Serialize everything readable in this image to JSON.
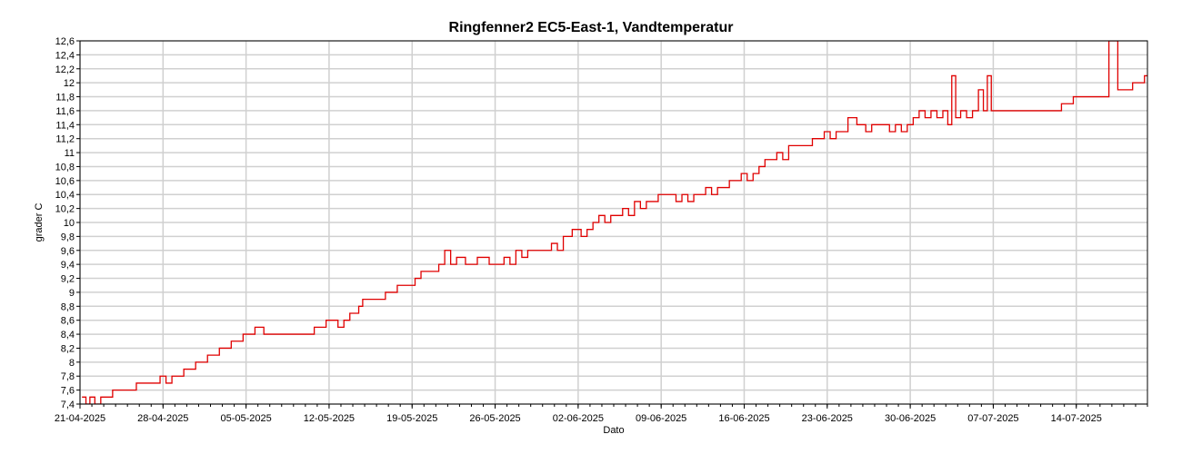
{
  "chart_data": {
    "type": "line",
    "title": "Ringfenner2 EC5-East-1, Vandtemperatur",
    "xlabel": "Dato",
    "ylabel": "grader C",
    "ylim": [
      7.4,
      12.6
    ],
    "y_ticks": [
      {
        "value": 7.4,
        "label": "7,4"
      },
      {
        "value": 7.6,
        "label": "7,6"
      },
      {
        "value": 7.8,
        "label": "7,8"
      },
      {
        "value": 8.0,
        "label": "8"
      },
      {
        "value": 8.2,
        "label": "8,2"
      },
      {
        "value": 8.4,
        "label": "8,4"
      },
      {
        "value": 8.6,
        "label": "8,6"
      },
      {
        "value": 8.8,
        "label": "8,8"
      },
      {
        "value": 9.0,
        "label": "9"
      },
      {
        "value": 9.2,
        "label": "9,2"
      },
      {
        "value": 9.4,
        "label": "9,4"
      },
      {
        "value": 9.6,
        "label": "9,6"
      },
      {
        "value": 9.8,
        "label": "9,8"
      },
      {
        "value": 10.0,
        "label": "10"
      },
      {
        "value": 10.2,
        "label": "10,2"
      },
      {
        "value": 10.4,
        "label": "10,4"
      },
      {
        "value": 10.6,
        "label": "10,6"
      },
      {
        "value": 10.8,
        "label": "10,8"
      },
      {
        "value": 11.0,
        "label": "11"
      },
      {
        "value": 11.2,
        "label": "11,2"
      },
      {
        "value": 11.4,
        "label": "11,4"
      },
      {
        "value": 11.6,
        "label": "11,6"
      },
      {
        "value": 11.8,
        "label": "11,8"
      },
      {
        "value": 12.0,
        "label": "12"
      },
      {
        "value": 12.2,
        "label": "12,2"
      },
      {
        "value": 12.4,
        "label": "12,4"
      },
      {
        "value": 12.6,
        "label": "12,6"
      }
    ],
    "x_range": [
      "2025-04-21",
      "2025-07-20"
    ],
    "x_ticks": [
      {
        "date": "2025-04-21",
        "label": "21-04-2025"
      },
      {
        "date": "2025-04-28",
        "label": "28-04-2025"
      },
      {
        "date": "2025-05-05",
        "label": "05-05-2025"
      },
      {
        "date": "2025-05-12",
        "label": "12-05-2025"
      },
      {
        "date": "2025-05-19",
        "label": "19-05-2025"
      },
      {
        "date": "2025-05-26",
        "label": "26-05-2025"
      },
      {
        "date": "2025-06-02",
        "label": "02-06-2025"
      },
      {
        "date": "2025-06-09",
        "label": "09-06-2025"
      },
      {
        "date": "2025-06-16",
        "label": "16-06-2025"
      },
      {
        "date": "2025-06-23",
        "label": "23-06-2025"
      },
      {
        "date": "2025-06-30",
        "label": "30-06-2025"
      },
      {
        "date": "2025-07-07",
        "label": "07-07-2025"
      },
      {
        "date": "2025-07-14",
        "label": "14-07-2025"
      }
    ],
    "grid": true,
    "series": [
      {
        "color": "#e00000",
        "points": [
          [
            "2025-04-21",
            7.5
          ],
          [
            "2025-04-21",
            7.4
          ],
          [
            "2025-04-21",
            7.5
          ],
          [
            "2025-04-22",
            7.4
          ],
          [
            "2025-04-22",
            7.5
          ],
          [
            "2025-04-23",
            7.5
          ],
          [
            "2025-04-23",
            7.6
          ],
          [
            "2025-04-24",
            7.6
          ],
          [
            "2025-04-25",
            7.6
          ],
          [
            "2025-04-25",
            7.7
          ],
          [
            "2025-04-27",
            7.7
          ],
          [
            "2025-04-27",
            7.8
          ],
          [
            "2025-04-28",
            7.7
          ],
          [
            "2025-04-28",
            7.8
          ],
          [
            "2025-04-29",
            7.8
          ],
          [
            "2025-04-29",
            7.9
          ],
          [
            "2025-04-30",
            7.9
          ],
          [
            "2025-04-30",
            8.0
          ],
          [
            "2025-05-01",
            8.0
          ],
          [
            "2025-05-01",
            8.1
          ],
          [
            "2025-05-02",
            8.1
          ],
          [
            "2025-05-02",
            8.2
          ],
          [
            "2025-05-03",
            8.2
          ],
          [
            "2025-05-03",
            8.3
          ],
          [
            "2025-05-04",
            8.3
          ],
          [
            "2025-05-04",
            8.4
          ],
          [
            "2025-05-05",
            8.4
          ],
          [
            "2025-05-05",
            8.5
          ],
          [
            "2025-05-06",
            8.4
          ],
          [
            "2025-05-10",
            8.4
          ],
          [
            "2025-05-10",
            8.5
          ],
          [
            "2025-05-11",
            8.5
          ],
          [
            "2025-05-11",
            8.6
          ],
          [
            "2025-05-12",
            8.6
          ],
          [
            "2025-05-12",
            8.5
          ],
          [
            "2025-05-13",
            8.6
          ],
          [
            "2025-05-13",
            8.7
          ],
          [
            "2025-05-14",
            8.7
          ],
          [
            "2025-05-14",
            8.8
          ],
          [
            "2025-05-14",
            8.9
          ],
          [
            "2025-05-16",
            8.9
          ],
          [
            "2025-05-16",
            9.0
          ],
          [
            "2025-05-17",
            9.0
          ],
          [
            "2025-05-17",
            9.1
          ],
          [
            "2025-05-18",
            9.1
          ],
          [
            "2025-05-19",
            9.2
          ],
          [
            "2025-05-19",
            9.3
          ],
          [
            "2025-05-20",
            9.3
          ],
          [
            "2025-05-21",
            9.4
          ],
          [
            "2025-05-21",
            9.6
          ],
          [
            "2025-05-22",
            9.4
          ],
          [
            "2025-05-22",
            9.5
          ],
          [
            "2025-05-23",
            9.4
          ],
          [
            "2025-05-24",
            9.5
          ],
          [
            "2025-05-25",
            9.4
          ],
          [
            "2025-05-26",
            9.4
          ],
          [
            "2025-05-26",
            9.5
          ],
          [
            "2025-05-27",
            9.4
          ],
          [
            "2025-05-27",
            9.6
          ],
          [
            "2025-05-28",
            9.5
          ],
          [
            "2025-05-28",
            9.6
          ],
          [
            "2025-05-29",
            9.6
          ],
          [
            "2025-05-30",
            9.6
          ],
          [
            "2025-05-30",
            9.7
          ],
          [
            "2025-05-31",
            9.6
          ],
          [
            "2025-05-31",
            9.8
          ],
          [
            "2025-06-01",
            9.9
          ],
          [
            "2025-06-02",
            9.8
          ],
          [
            "2025-06-02",
            9.9
          ],
          [
            "2025-06-03",
            10.0
          ],
          [
            "2025-06-03",
            10.1
          ],
          [
            "2025-06-04",
            10.0
          ],
          [
            "2025-06-04",
            10.1
          ],
          [
            "2025-06-05",
            10.1
          ],
          [
            "2025-06-05",
            10.2
          ],
          [
            "2025-06-06",
            10.1
          ],
          [
            "2025-06-06",
            10.3
          ],
          [
            "2025-06-07",
            10.2
          ],
          [
            "2025-06-07",
            10.3
          ],
          [
            "2025-06-08",
            10.3
          ],
          [
            "2025-06-08",
            10.4
          ],
          [
            "2025-06-09",
            10.4
          ],
          [
            "2025-06-10",
            10.3
          ],
          [
            "2025-06-10",
            10.4
          ],
          [
            "2025-06-11",
            10.3
          ],
          [
            "2025-06-11",
            10.4
          ],
          [
            "2025-06-12",
            10.4
          ],
          [
            "2025-06-12",
            10.5
          ],
          [
            "2025-06-13",
            10.4
          ],
          [
            "2025-06-13",
            10.5
          ],
          [
            "2025-06-14",
            10.5
          ],
          [
            "2025-06-14",
            10.6
          ],
          [
            "2025-06-15",
            10.6
          ],
          [
            "2025-06-15",
            10.7
          ],
          [
            "2025-06-16",
            10.6
          ],
          [
            "2025-06-16",
            10.7
          ],
          [
            "2025-06-17",
            10.8
          ],
          [
            "2025-06-17",
            10.9
          ],
          [
            "2025-06-18",
            10.9
          ],
          [
            "2025-06-18",
            11.0
          ],
          [
            "2025-06-19",
            10.9
          ],
          [
            "2025-06-19",
            11.1
          ],
          [
            "2025-06-20",
            11.1
          ],
          [
            "2025-06-21",
            11.1
          ],
          [
            "2025-06-21",
            11.2
          ],
          [
            "2025-06-22",
            11.2
          ],
          [
            "2025-06-22",
            11.3
          ],
          [
            "2025-06-23",
            11.2
          ],
          [
            "2025-06-23",
            11.3
          ],
          [
            "2025-06-24",
            11.3
          ],
          [
            "2025-06-24",
            11.5
          ],
          [
            "2025-06-25",
            11.4
          ],
          [
            "2025-06-26",
            11.3
          ],
          [
            "2025-06-26",
            11.4
          ],
          [
            "2025-06-27",
            11.4
          ],
          [
            "2025-06-28",
            11.3
          ],
          [
            "2025-06-28",
            11.4
          ],
          [
            "2025-06-29",
            11.3
          ],
          [
            "2025-06-29",
            11.4
          ],
          [
            "2025-06-30",
            11.5
          ],
          [
            "2025-06-30",
            11.6
          ],
          [
            "2025-07-01",
            11.5
          ],
          [
            "2025-07-01",
            11.6
          ],
          [
            "2025-07-02",
            11.5
          ],
          [
            "2025-07-02",
            11.6
          ],
          [
            "2025-07-03",
            11.4
          ],
          [
            "2025-07-03",
            12.1
          ],
          [
            "2025-07-03",
            11.5
          ],
          [
            "2025-07-04",
            11.6
          ],
          [
            "2025-07-04",
            11.5
          ],
          [
            "2025-07-05",
            11.6
          ],
          [
            "2025-07-05",
            11.9
          ],
          [
            "2025-07-06",
            11.6
          ],
          [
            "2025-07-06",
            12.1
          ],
          [
            "2025-07-06",
            11.6
          ],
          [
            "2025-07-08",
            11.6
          ],
          [
            "2025-07-10",
            11.6
          ],
          [
            "2025-07-12",
            11.6
          ],
          [
            "2025-07-12",
            11.7
          ],
          [
            "2025-07-13",
            11.7
          ],
          [
            "2025-07-13",
            11.8
          ],
          [
            "2025-07-14",
            11.8
          ],
          [
            "2025-07-16",
            11.8
          ],
          [
            "2025-07-16",
            12.6
          ],
          [
            "2025-07-17",
            11.9
          ],
          [
            "2025-07-18",
            11.9
          ],
          [
            "2025-07-18",
            12.0
          ],
          [
            "2025-07-19",
            12.0
          ],
          [
            "2025-07-19",
            12.1
          ],
          [
            "2025-07-20",
            12.1
          ]
        ]
      }
    ]
  }
}
